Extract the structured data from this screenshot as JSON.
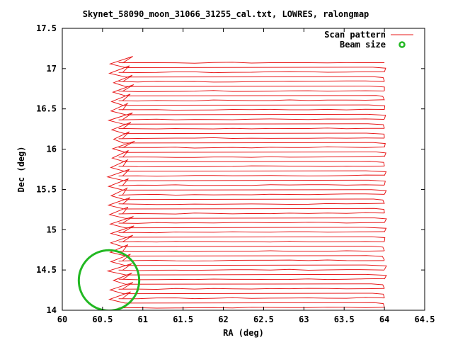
{
  "chart_data": {
    "type": "line",
    "title": "Skynet_58090_moon_31066_31255_cal.txt, LOWRES, ralongmap",
    "xlabel": "RA (deg)",
    "ylabel": "Dec (deg)",
    "xlim": [
      60,
      64.5
    ],
    "ylim": [
      14,
      17.5
    ],
    "xticks": [
      "60",
      "60.5",
      "61",
      "61.5",
      "62",
      "62.5",
      "63",
      "63.5",
      "64",
      "64.5"
    ],
    "yticks": [
      "14",
      "14.5",
      "15",
      "15.5",
      "16",
      "16.5",
      "17",
      "17.5"
    ],
    "legend_position": "top-right",
    "grid": false,
    "series": [
      {
        "name": "Scan pattern",
        "color": "#e8191a",
        "kind": "raster-scan",
        "ra_start": 60.7,
        "ra_end": 64.0,
        "dec_start": 14.03,
        "dec_end": 17.07,
        "num_rows": 27
      },
      {
        "name": "Beam size",
        "color": "#22b822",
        "kind": "circle",
        "center_ra": 60.58,
        "center_dec": 14.37,
        "radius_deg": 0.375
      }
    ]
  }
}
